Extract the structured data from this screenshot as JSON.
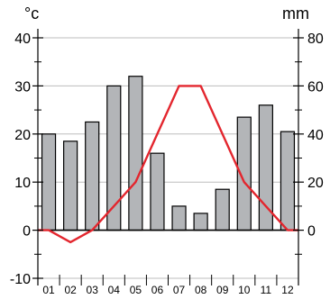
{
  "chart_data": {
    "type": "bar+line",
    "left_unit": "°c",
    "right_unit": "mm",
    "categories": [
      "01",
      "02",
      "03",
      "04",
      "05",
      "06",
      "07",
      "08",
      "09",
      "10",
      "11",
      "12"
    ],
    "temperature_ylim": [
      -10,
      40
    ],
    "temperature_ticks": [
      -10,
      0,
      10,
      20,
      30,
      40
    ],
    "precipitation_ylim": [
      -20,
      80
    ],
    "precipitation_ticks": [
      0,
      20,
      40,
      60,
      80
    ],
    "precipitation_mm": [
      40,
      37,
      45,
      60,
      64,
      32,
      10,
      7,
      17,
      47,
      52,
      41
    ],
    "temperature_c": [
      0,
      -2.5,
      0,
      5,
      10,
      20,
      30,
      30,
      20,
      10,
      5,
      0
    ],
    "colors": {
      "bar_fill": "#b3b5b8",
      "bar_stroke": "#000000",
      "line": "#e3262e",
      "grid": "#bdbdbd"
    },
    "grid": true
  }
}
